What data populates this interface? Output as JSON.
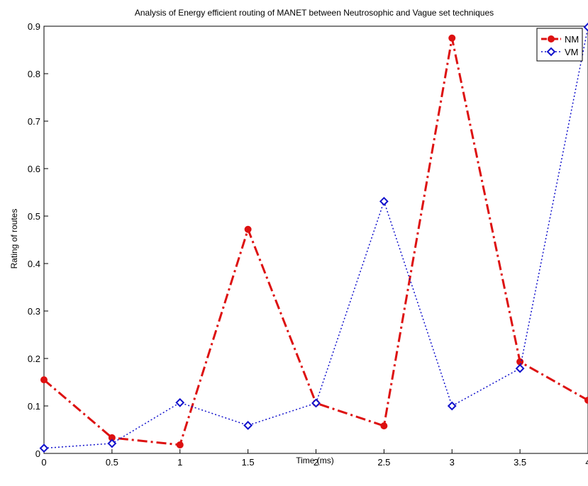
{
  "chart_data": {
    "type": "line",
    "title": "Analysis of Energy efficient routing of MANET between Neutrosophic and Vague set techniques",
    "xlabel": "Time (ms)",
    "ylabel": "Rating of routes",
    "xlim": [
      0,
      4
    ],
    "ylim": [
      0,
      0.9
    ],
    "xticks": [
      0,
      0.5,
      1,
      1.5,
      2,
      2.5,
      3,
      3.5,
      4
    ],
    "xtick_labels": [
      "0",
      "0.5",
      "1",
      "1.5",
      "2",
      "2.5",
      "3",
      "3.5",
      "4"
    ],
    "yticks": [
      0,
      0.1,
      0.2,
      0.3,
      0.4,
      0.5,
      0.6,
      0.7,
      0.8,
      0.9
    ],
    "ytick_labels": [
      "0",
      "0.1",
      "0.2",
      "0.3",
      "0.4",
      "0.5",
      "0.6",
      "0.7",
      "0.8",
      "0.9"
    ],
    "grid": false,
    "legend_position": "top-right",
    "x": [
      0,
      0.5,
      1,
      1.5,
      2,
      2.5,
      3,
      3.5,
      4
    ],
    "series": [
      {
        "name": "NM",
        "values": [
          0.155,
          0.033,
          0.018,
          0.472,
          0.106,
          0.058,
          0.875,
          0.193,
          0.112
        ],
        "color": "#dd1111",
        "line_style": "dash-dot",
        "marker": "circle"
      },
      {
        "name": "VM",
        "values": [
          0.011,
          0.021,
          0.107,
          0.059,
          0.106,
          0.531,
          0.1,
          0.179,
          0.898
        ],
        "color": "#1111cc",
        "line_style": "dotted",
        "marker": "diamond"
      }
    ]
  }
}
